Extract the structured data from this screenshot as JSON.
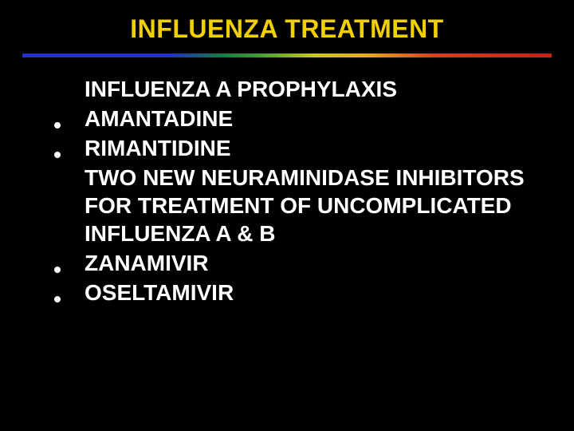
{
  "title": {
    "text": "INFLUENZA TREATMENT",
    "color": "#f0d000",
    "fontsize": 32
  },
  "rule": {
    "gradient_colors": [
      "#2030c8",
      "#108040",
      "#c8c820",
      "#e8a820",
      "#c82010"
    ],
    "height": 5
  },
  "body": {
    "text_color": "#ffffff",
    "bullet_color": "#ffffff",
    "fontsize": 28,
    "lines": [
      {
        "bullet": false,
        "text": " INFLUENZA A PROPHYLAXIS"
      },
      {
        "bullet": true,
        "text": "AMANTADINE"
      },
      {
        "bullet": true,
        "text": "RIMANTIDINE"
      },
      {
        "bullet": false,
        "text": "TWO NEW NEURAMINIDASE INHIBITORS FOR TREATMENT OF UNCOMPLICATED INFLUENZA A & B"
      },
      {
        "bullet": true,
        "text": "ZANAMIVIR"
      },
      {
        "bullet": true,
        "text": "OSELTAMIVIR"
      }
    ]
  },
  "background_color": "#000000"
}
